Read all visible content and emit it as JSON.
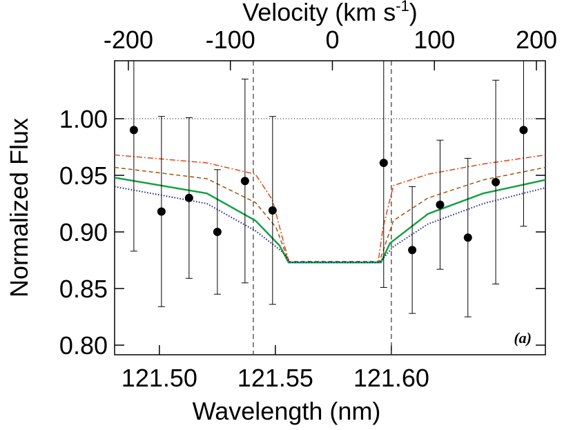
{
  "chart_data": {
    "type": "line",
    "x_label": "Wavelength (nm)",
    "y_label": "Normalized Flux",
    "x2_label": {
      "text": "Velocity (km s",
      "sup": "-1",
      "tail": ")"
    },
    "annotation": "(a)",
    "xlim": [
      121.4807,
      121.6664
    ],
    "xticks": [
      {
        "value": 121.5,
        "label": "121.50"
      },
      121.55,
      {
        "value": 121.6,
        "label": "121.60"
      }
    ],
    "x2lim": [
      -213.5,
      208.8
    ],
    "x2ticks": [
      -200,
      -100,
      0,
      100,
      200
    ],
    "ylim": [
      0.7915,
      1.0512
    ],
    "yticks": [
      {
        "value": 1.0,
        "label": "1.00"
      },
      0.95,
      {
        "value": 0.9,
        "label": "0.90"
      },
      0.85,
      {
        "value": 0.8,
        "label": "0.80"
      }
    ],
    "hline": 1.0,
    "vlines": [
      121.5405,
      121.6
    ],
    "series": [
      {
        "style": "dashdot",
        "color": "#e04418",
        "x": [
          121.4807,
          121.5205,
          121.5414,
          121.5488,
          121.5539,
          121.556,
          121.5943,
          121.5964,
          121.6009,
          121.6158,
          121.6396,
          121.6664
        ],
        "values": [
          0.968,
          0.961,
          0.951,
          0.928,
          0.888,
          0.873,
          0.873,
          0.904,
          0.941,
          0.951,
          0.96,
          0.968
        ]
      },
      {
        "style": "dashed",
        "color": "#a0520a",
        "x": [
          121.4807,
          121.5205,
          121.5414,
          121.5503,
          121.5557,
          121.5949,
          121.6009,
          121.6158,
          121.6396,
          121.6664
        ],
        "values": [
          0.957,
          0.947,
          0.926,
          0.904,
          0.874,
          0.874,
          0.91,
          0.93,
          0.946,
          0.957
        ]
      },
      {
        "style": "solid",
        "color": "#14a044",
        "x": [
          121.4807,
          121.5205,
          121.5414,
          121.5518,
          121.5557,
          121.5955,
          121.5994,
          121.6158,
          121.6396,
          121.6664
        ],
        "values": [
          0.948,
          0.934,
          0.91,
          0.888,
          0.873,
          0.873,
          0.89,
          0.916,
          0.934,
          0.946
        ]
      },
      {
        "style": "dotted",
        "color": "#1a1a80",
        "x": [
          121.4807,
          121.5205,
          121.5414,
          121.5533,
          121.5563,
          121.5949,
          121.6009,
          121.6158,
          121.6396,
          121.6664
        ],
        "values": [
          0.94,
          0.925,
          0.901,
          0.882,
          0.873,
          0.873,
          0.887,
          0.907,
          0.925,
          0.939
        ]
      },
      {
        "style": "points",
        "color": "#000000",
        "x": [
          121.489,
          121.5009,
          121.5128,
          121.525,
          121.5369,
          121.5488,
          121.5967,
          121.609,
          121.621,
          121.633,
          121.645,
          121.657
        ],
        "values": [
          0.99,
          0.918,
          0.93,
          0.9,
          0.945,
          0.919,
          0.961,
          0.884,
          0.924,
          0.895,
          0.944,
          0.99
        ],
        "errors": [
          0.107,
          0.084,
          0.071,
          0.055,
          0.09,
          0.083,
          0.11,
          0.056,
          0.057,
          0.07,
          0.09,
          0.085
        ]
      }
    ]
  }
}
